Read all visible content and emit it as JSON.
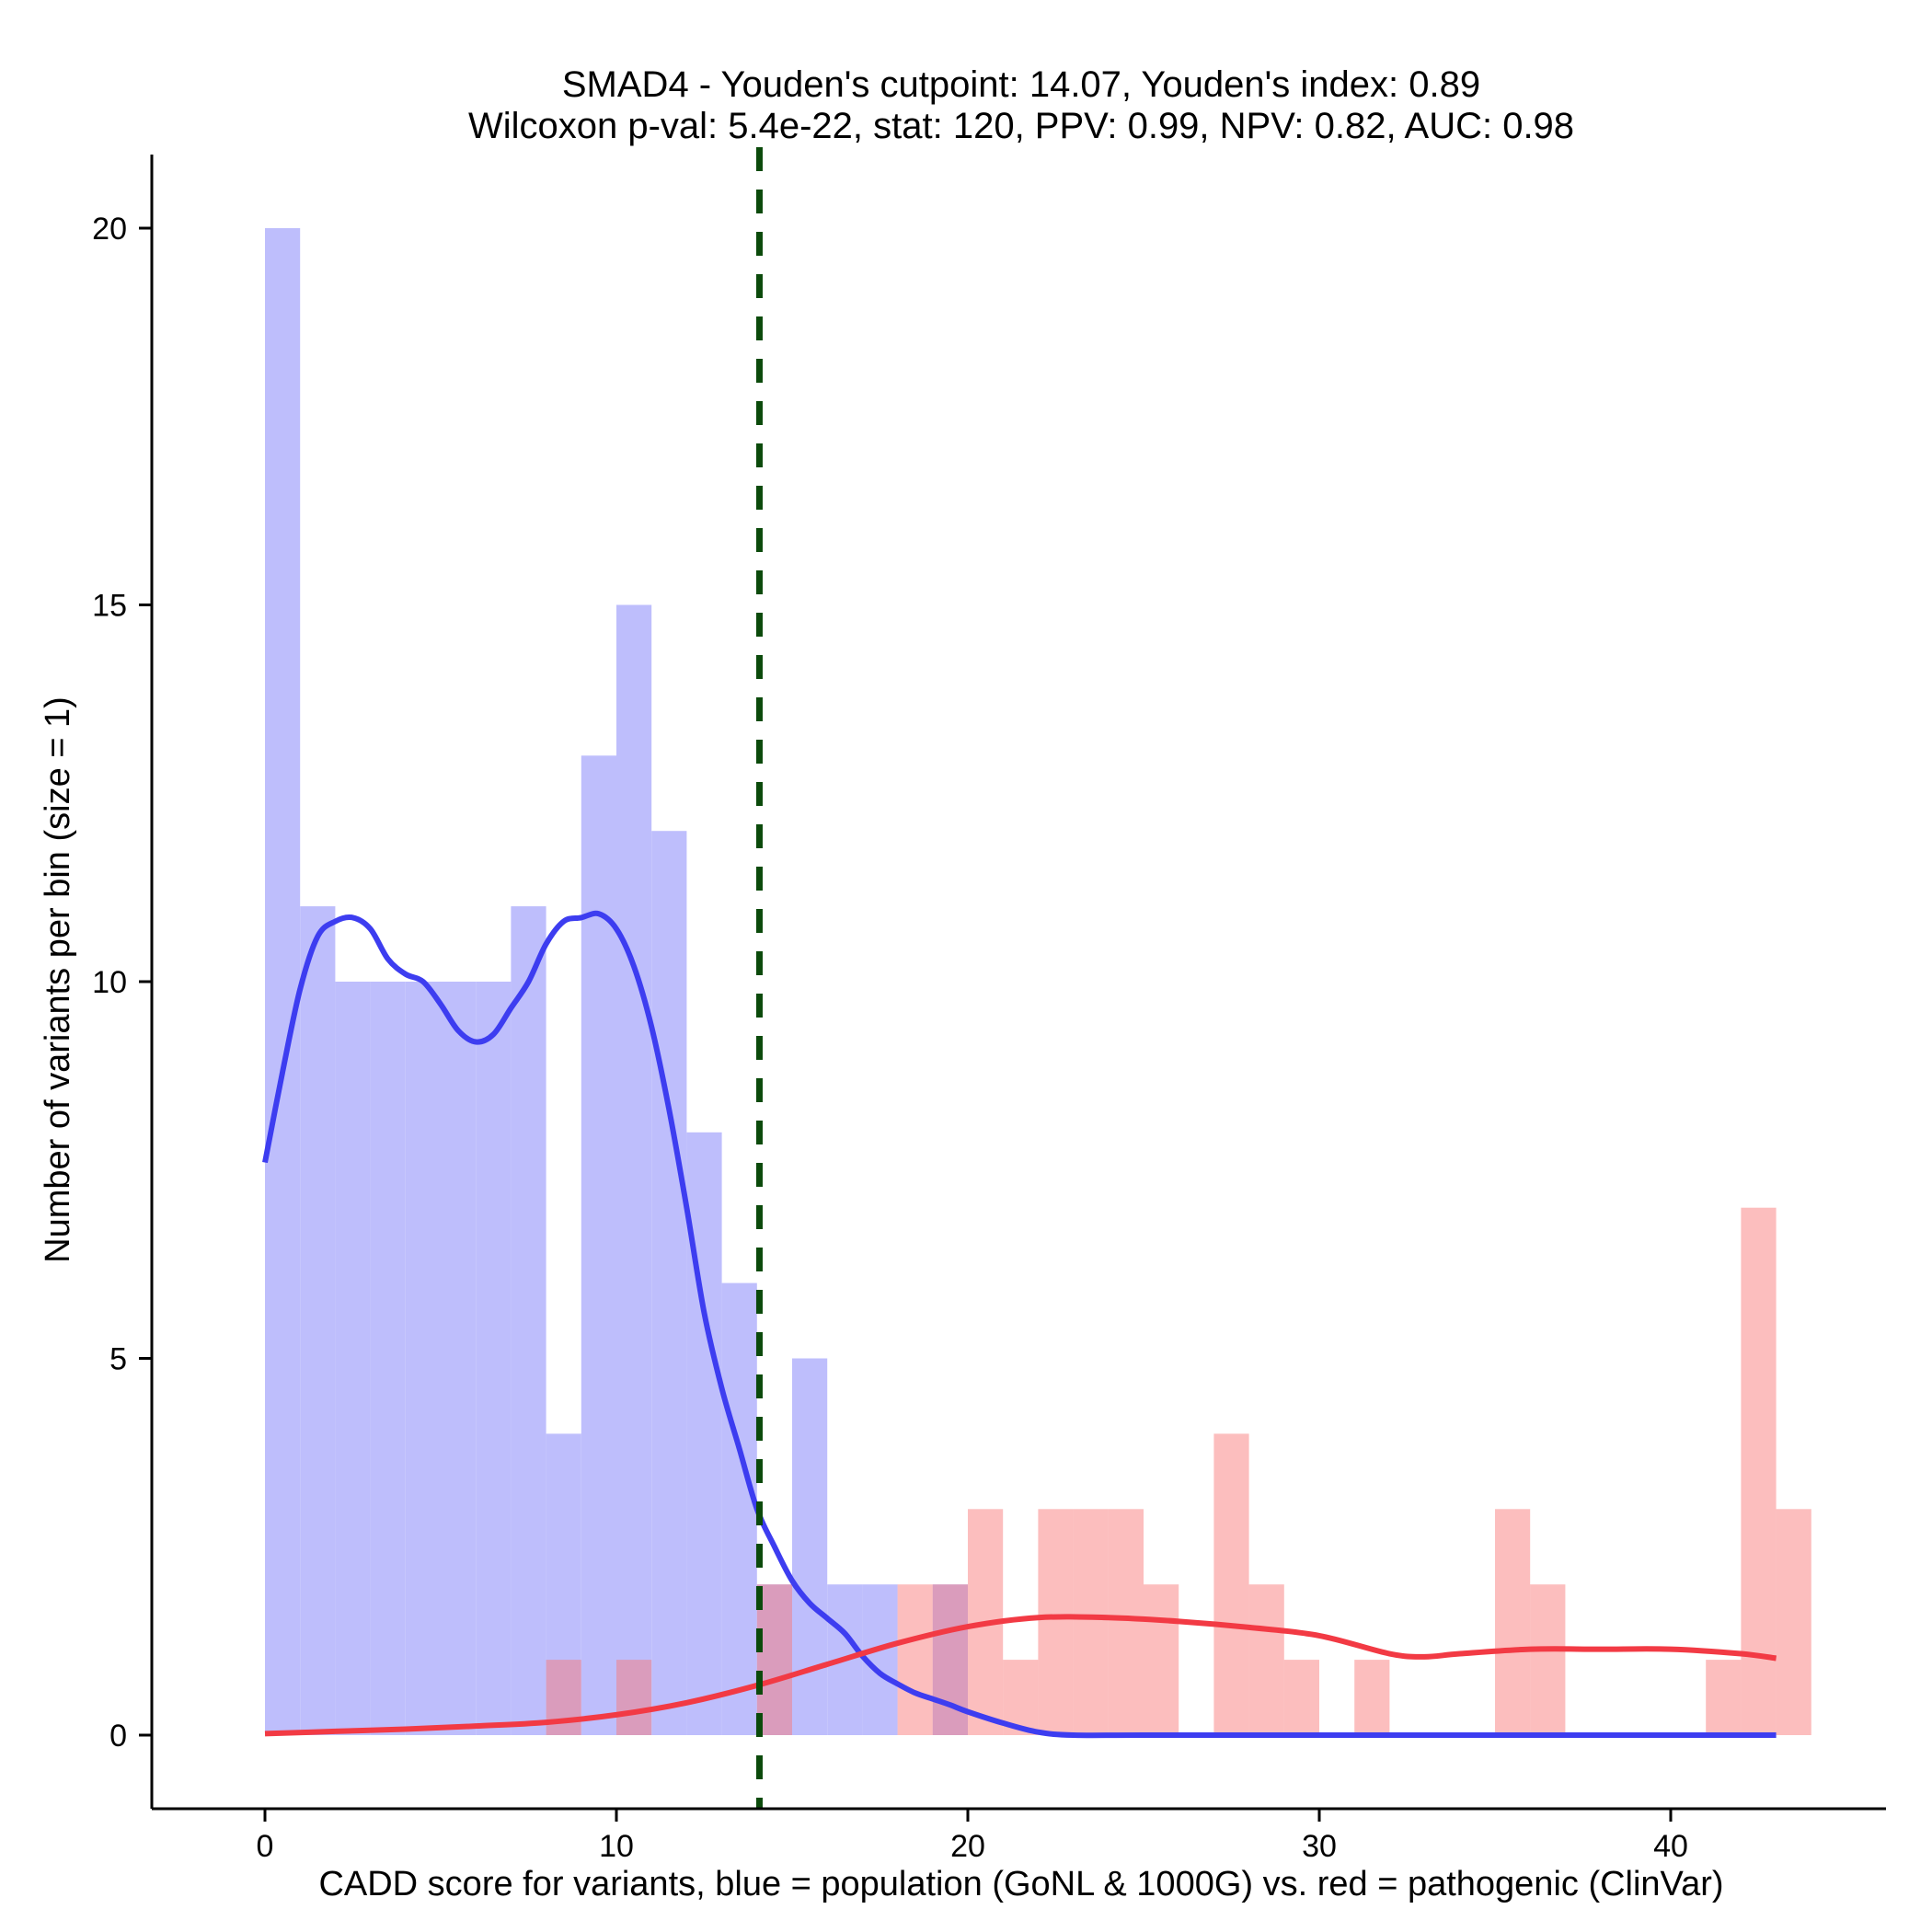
{
  "chart_data": {
    "type": "histogram",
    "title": "SMAD4 - Youden's cutpoint: 14.07, Youden's index: 0.89",
    "subtitle": "Wilcoxon p-val: 5.4e-22, stat: 120, PPV: 0.99, NPV: 0.82, AUC: 0.98",
    "xlabel": "CADD score for variants, blue = population (GoNL & 1000G) vs. red = pathogenic (ClinVar)",
    "ylabel": "Number of variants per bin (size = 1)",
    "xlim": [
      -3.2,
      46.2
    ],
    "ylim": [
      -1,
      21
    ],
    "x_ticks": [
      0,
      10,
      20,
      30,
      40
    ],
    "y_ticks": [
      0,
      5,
      10,
      15,
      20
    ],
    "bin_size": 1,
    "cutpoint": 14.07,
    "colors": {
      "population_bar": "#bebefc",
      "pathogenic_bar": "#fcbfbf",
      "population_line": "#3d3df0",
      "pathogenic_line": "#f23a44",
      "cutpoint_line": "#0b4a0b"
    },
    "series": [
      {
        "name": "population (GoNL & 1000G)",
        "bin_starts": [
          0,
          1,
          2,
          3,
          4,
          5,
          6,
          7,
          8,
          9,
          10,
          11,
          12,
          13,
          14,
          15,
          16,
          17,
          18,
          19
        ],
        "counts": [
          20,
          11,
          10,
          10,
          10,
          10,
          10,
          11,
          4,
          13,
          15,
          12,
          8,
          6,
          2,
          5,
          2,
          2,
          0,
          2
        ]
      },
      {
        "name": "pathogenic (ClinVar)",
        "bin_starts": [
          8,
          10,
          14,
          18,
          19,
          20,
          21,
          22,
          23,
          24,
          25,
          27,
          28,
          29,
          31,
          35,
          36,
          41,
          42,
          43
        ],
        "counts": [
          1,
          1,
          2,
          2,
          2,
          3,
          1,
          3,
          3,
          3,
          2,
          4,
          2,
          1,
          1,
          3,
          2,
          1,
          7,
          3
        ]
      }
    ],
    "density_curves": [
      {
        "name": "population density",
        "x": [
          0,
          0.5,
          1,
          1.5,
          2,
          2.5,
          3,
          3.5,
          4,
          4.5,
          5,
          5.5,
          6,
          6.5,
          7,
          7.5,
          8,
          8.5,
          9,
          9.5,
          10,
          10.5,
          11,
          11.5,
          12,
          12.5,
          13,
          13.5,
          14,
          14.5,
          15,
          15.5,
          16,
          16.5,
          17,
          17.5,
          18,
          18.5,
          19,
          19.5,
          20,
          21,
          22,
          23,
          25,
          30,
          35,
          40,
          43
        ],
        "y": [
          7.6,
          8.8,
          9.9,
          10.6,
          10.8,
          10.85,
          10.7,
          10.3,
          10.1,
          10.0,
          9.7,
          9.35,
          9.2,
          9.3,
          9.65,
          10.0,
          10.5,
          10.8,
          10.85,
          10.9,
          10.7,
          10.2,
          9.4,
          8.3,
          7.0,
          5.6,
          4.6,
          3.8,
          3.0,
          2.5,
          2.05,
          1.75,
          1.55,
          1.35,
          1.05,
          0.82,
          0.68,
          0.56,
          0.48,
          0.4,
          0.31,
          0.16,
          0.04,
          0,
          0,
          0,
          0,
          0,
          0
        ]
      },
      {
        "name": "pathogenic density",
        "x": [
          0,
          2,
          4,
          6,
          8,
          10,
          12,
          14,
          16,
          18,
          20,
          22,
          24,
          26,
          28,
          30,
          32,
          33,
          34,
          36,
          38,
          40,
          42,
          43
        ],
        "y": [
          0.02,
          0.05,
          0.08,
          0.12,
          0.17,
          0.27,
          0.43,
          0.66,
          0.94,
          1.22,
          1.44,
          1.56,
          1.56,
          1.51,
          1.43,
          1.32,
          1.08,
          1.04,
          1.08,
          1.14,
          1.14,
          1.14,
          1.08,
          1.02
        ]
      }
    ]
  }
}
